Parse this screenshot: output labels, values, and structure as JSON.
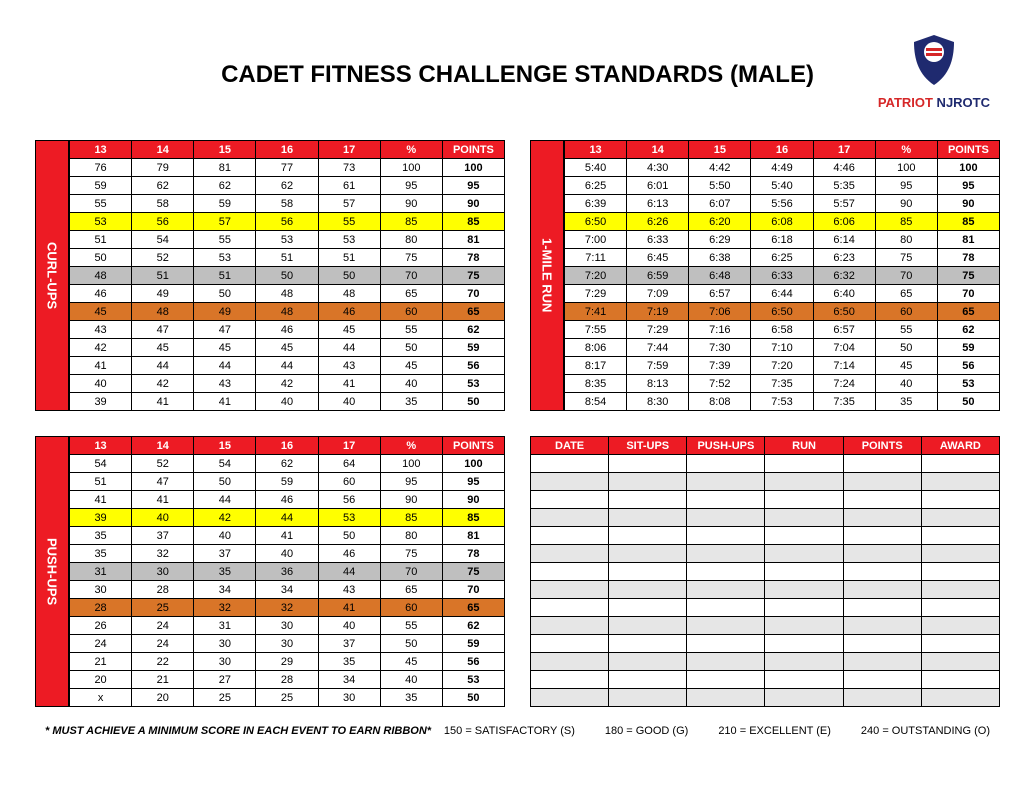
{
  "title": "CADET FITNESS CHALLENGE STANDARDS (MALE)",
  "logo": {
    "patriot": "PATRIOT",
    "njrotc": " NJROTC"
  },
  "colors": {
    "header_bg": "#ed1b24",
    "header_fg": "#ffffff",
    "hl_yellow": "#ffff00",
    "hl_gray": "#bfbfbf",
    "hl_orange": "#d97528",
    "border": "#000000"
  },
  "age_headers": [
    "13",
    "14",
    "15",
    "16",
    "17",
    "%",
    "POINTS"
  ],
  "curlups": {
    "label": "CURL-UPS",
    "rows": [
      {
        "v": [
          "76",
          "79",
          "81",
          "77",
          "73",
          "100",
          "100"
        ]
      },
      {
        "v": [
          "59",
          "62",
          "62",
          "62",
          "61",
          "95",
          "95"
        ]
      },
      {
        "v": [
          "55",
          "58",
          "59",
          "58",
          "57",
          "90",
          "90"
        ]
      },
      {
        "v": [
          "53",
          "56",
          "57",
          "56",
          "55",
          "85",
          "85"
        ],
        "hl": "yellow"
      },
      {
        "v": [
          "51",
          "54",
          "55",
          "53",
          "53",
          "80",
          "81"
        ]
      },
      {
        "v": [
          "50",
          "52",
          "53",
          "51",
          "51",
          "75",
          "78"
        ]
      },
      {
        "v": [
          "48",
          "51",
          "51",
          "50",
          "50",
          "70",
          "75"
        ],
        "hl": "gray"
      },
      {
        "v": [
          "46",
          "49",
          "50",
          "48",
          "48",
          "65",
          "70"
        ]
      },
      {
        "v": [
          "45",
          "48",
          "49",
          "48",
          "46",
          "60",
          "65"
        ],
        "hl": "orange"
      },
      {
        "v": [
          "43",
          "47",
          "47",
          "46",
          "45",
          "55",
          "62"
        ]
      },
      {
        "v": [
          "42",
          "45",
          "45",
          "45",
          "44",
          "50",
          "59"
        ]
      },
      {
        "v": [
          "41",
          "44",
          "44",
          "44",
          "43",
          "45",
          "56"
        ]
      },
      {
        "v": [
          "40",
          "42",
          "43",
          "42",
          "41",
          "40",
          "53"
        ]
      },
      {
        "v": [
          "39",
          "41",
          "41",
          "40",
          "40",
          "35",
          "50"
        ]
      }
    ]
  },
  "pushups": {
    "label": "PUSH-UPS",
    "rows": [
      {
        "v": [
          "54",
          "52",
          "54",
          "62",
          "64",
          "100",
          "100"
        ]
      },
      {
        "v": [
          "51",
          "47",
          "50",
          "59",
          "60",
          "95",
          "95"
        ]
      },
      {
        "v": [
          "41",
          "41",
          "44",
          "46",
          "56",
          "90",
          "90"
        ]
      },
      {
        "v": [
          "39",
          "40",
          "42",
          "44",
          "53",
          "85",
          "85"
        ],
        "hl": "yellow"
      },
      {
        "v": [
          "35",
          "37",
          "40",
          "41",
          "50",
          "80",
          "81"
        ]
      },
      {
        "v": [
          "35",
          "32",
          "37",
          "40",
          "46",
          "75",
          "78"
        ]
      },
      {
        "v": [
          "31",
          "30",
          "35",
          "36",
          "44",
          "70",
          "75"
        ],
        "hl": "gray"
      },
      {
        "v": [
          "30",
          "28",
          "34",
          "34",
          "43",
          "65",
          "70"
        ]
      },
      {
        "v": [
          "28",
          "25",
          "32",
          "32",
          "41",
          "60",
          "65"
        ],
        "hl": "orange"
      },
      {
        "v": [
          "26",
          "24",
          "31",
          "30",
          "40",
          "55",
          "62"
        ]
      },
      {
        "v": [
          "24",
          "24",
          "30",
          "30",
          "37",
          "50",
          "59"
        ]
      },
      {
        "v": [
          "21",
          "22",
          "30",
          "29",
          "35",
          "45",
          "56"
        ]
      },
      {
        "v": [
          "20",
          "21",
          "27",
          "28",
          "34",
          "40",
          "53"
        ]
      },
      {
        "v": [
          "x",
          "20",
          "25",
          "25",
          "30",
          "35",
          "50"
        ]
      }
    ]
  },
  "run": {
    "label": "1-MILE RUN",
    "rows": [
      {
        "v": [
          "5:40",
          "4:30",
          "4:42",
          "4:49",
          "4:46",
          "100",
          "100"
        ]
      },
      {
        "v": [
          "6:25",
          "6:01",
          "5:50",
          "5:40",
          "5:35",
          "95",
          "95"
        ]
      },
      {
        "v": [
          "6:39",
          "6:13",
          "6:07",
          "5:56",
          "5:57",
          "90",
          "90"
        ]
      },
      {
        "v": [
          "6:50",
          "6:26",
          "6:20",
          "6:08",
          "6:06",
          "85",
          "85"
        ],
        "hl": "yellow"
      },
      {
        "v": [
          "7:00",
          "6:33",
          "6:29",
          "6:18",
          "6:14",
          "80",
          "81"
        ]
      },
      {
        "v": [
          "7:11",
          "6:45",
          "6:38",
          "6:25",
          "6:23",
          "75",
          "78"
        ]
      },
      {
        "v": [
          "7:20",
          "6:59",
          "6:48",
          "6:33",
          "6:32",
          "70",
          "75"
        ],
        "hl": "gray"
      },
      {
        "v": [
          "7:29",
          "7:09",
          "6:57",
          "6:44",
          "6:40",
          "65",
          "70"
        ]
      },
      {
        "v": [
          "7:41",
          "7:19",
          "7:06",
          "6:50",
          "6:50",
          "60",
          "65"
        ],
        "hl": "orange"
      },
      {
        "v": [
          "7:55",
          "7:29",
          "7:16",
          "6:58",
          "6:57",
          "55",
          "62"
        ]
      },
      {
        "v": [
          "8:06",
          "7:44",
          "7:30",
          "7:10",
          "7:04",
          "50",
          "59"
        ]
      },
      {
        "v": [
          "8:17",
          "7:59",
          "7:39",
          "7:20",
          "7:14",
          "45",
          "56"
        ]
      },
      {
        "v": [
          "8:35",
          "8:13",
          "7:52",
          "7:35",
          "7:24",
          "40",
          "53"
        ]
      },
      {
        "v": [
          "8:54",
          "8:30",
          "8:08",
          "7:53",
          "7:35",
          "35",
          "50"
        ]
      }
    ]
  },
  "log": {
    "headers": [
      "DATE",
      "SIT-UPS",
      "PUSH-UPS",
      "RUN",
      "POINTS",
      "AWARD"
    ],
    "blank_rows": 14
  },
  "footer": {
    "note": "* MUST ACHIEVE A MINIMUM SCORE IN EACH EVENT TO EARN RIBBON*",
    "legend": [
      "150 = SATISFACTORY (S)",
      "180 = GOOD (G)",
      "210 = EXCELLENT (E)",
      "240 = OUTSTANDING (O)"
    ]
  }
}
